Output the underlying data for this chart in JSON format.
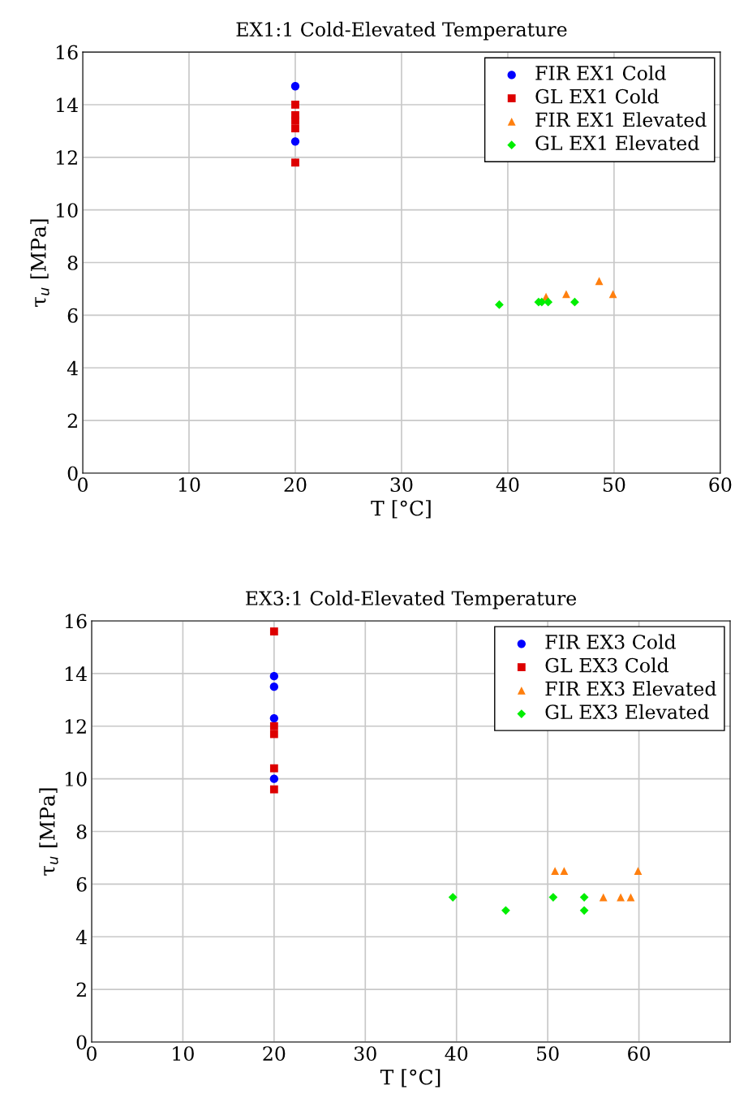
{
  "chart_data": [
    {
      "type": "scatter",
      "title": "EX1:1 Cold-Elevated Temperature",
      "xlabel": "T [°C]",
      "ylabel": "τ$_{u}$ [MPa]",
      "xlim": [
        0,
        60
      ],
      "ylim": [
        0,
        16
      ],
      "xticks": [
        0,
        10,
        20,
        30,
        40,
        50,
        60
      ],
      "yticks": [
        0,
        2,
        4,
        6,
        8,
        10,
        12,
        14,
        16
      ],
      "grid": true,
      "legend": "top right",
      "series": [
        {
          "name": "FIR EX1 Cold",
          "color": "#0000ff",
          "marker": "circle",
          "x": [
            20,
            20
          ],
          "values": [
            14.7,
            12.6
          ]
        },
        {
          "name": "GL EX1 Cold",
          "color": "#dd0000",
          "marker": "square",
          "x": [
            20,
            20,
            20,
            20,
            20
          ],
          "values": [
            14.0,
            13.6,
            13.4,
            13.1,
            11.8
          ]
        },
        {
          "name": "FIR EX1 Elevated",
          "color": "#ff7f0e",
          "marker": "triangle",
          "x": [
            43.6,
            45.5,
            48.6,
            49.9
          ],
          "values": [
            6.7,
            6.8,
            7.3,
            6.8
          ]
        },
        {
          "name": "GL EX1 Elevated",
          "color": "#00ee00",
          "marker": "diamond",
          "x": [
            39.2,
            42.9,
            43.2,
            43.8,
            46.3
          ],
          "values": [
            6.4,
            6.5,
            6.5,
            6.5,
            6.5
          ]
        }
      ]
    },
    {
      "type": "scatter",
      "title": "EX3:1 Cold-Elevated Temperature",
      "xlabel": "T [°C]",
      "ylabel": "τ$_{u}$ [MPa]",
      "xlim": [
        0,
        70
      ],
      "ylim": [
        0,
        16
      ],
      "xticks": [
        0,
        10,
        20,
        30,
        40,
        50,
        60
      ],
      "yticks": [
        0,
        2,
        4,
        6,
        8,
        10,
        12,
        14,
        16
      ],
      "grid": true,
      "legend": "top right",
      "series": [
        {
          "name": "FIR EX3 Cold",
          "color": "#0000ff",
          "marker": "circle",
          "x": [
            20,
            20,
            20,
            20
          ],
          "values": [
            13.9,
            13.5,
            12.3,
            10.0
          ]
        },
        {
          "name": "GL EX3 Cold",
          "color": "#dd0000",
          "marker": "square",
          "x": [
            20,
            20,
            20,
            20,
            20
          ],
          "values": [
            15.6,
            12.0,
            11.7,
            10.4,
            9.6
          ]
        },
        {
          "name": "FIR EX3 Elevated",
          "color": "#ff7f0e",
          "marker": "triangle",
          "x": [
            50.8,
            51.8,
            59.9,
            56.1,
            58.0,
            59.1
          ],
          "values": [
            6.5,
            6.5,
            6.5,
            5.5,
            5.5,
            5.5
          ]
        },
        {
          "name": "GL EX3 Elevated",
          "color": "#00ee00",
          "marker": "diamond",
          "x": [
            39.6,
            45.4,
            50.6,
            54.0,
            54.0
          ],
          "values": [
            5.5,
            5.0,
            5.5,
            5.5,
            5.0
          ]
        }
      ]
    }
  ]
}
